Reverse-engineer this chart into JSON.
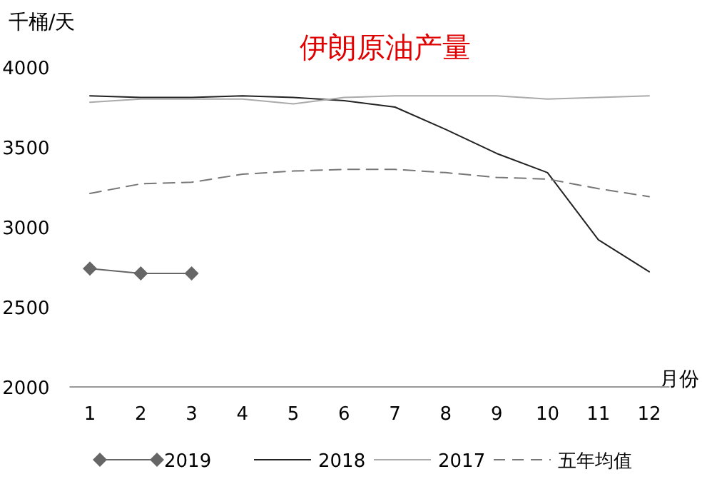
{
  "chart_data": {
    "type": "line",
    "title": "伊朗原油产量",
    "ylabel": "千桶/天",
    "xlabel": "月份",
    "x": [
      1,
      2,
      3,
      4,
      5,
      6,
      7,
      8,
      9,
      10,
      11,
      12
    ],
    "xlim": [
      0.6,
      12.4
    ],
    "xticks": [
      1,
      2,
      3,
      4,
      5,
      6,
      7,
      8,
      9,
      10,
      11,
      12
    ],
    "ylim": [
      2000,
      4000
    ],
    "yticks": [
      2000,
      2500,
      3000,
      3500,
      4000
    ],
    "grid": false,
    "legend": "bottom",
    "series": [
      {
        "name": "2019",
        "color": "#666666",
        "marker": "diamond",
        "line_style": "solid",
        "values": [
          2740,
          2710,
          2710,
          null,
          null,
          null,
          null,
          null,
          null,
          null,
          null,
          null
        ]
      },
      {
        "name": "2018",
        "color": "#222222",
        "marker": "none",
        "line_style": "solid",
        "values": [
          3820,
          3810,
          3810,
          3820,
          3810,
          3790,
          3750,
          3610,
          3460,
          3340,
          2920,
          2720
        ]
      },
      {
        "name": "2017",
        "color": "#aaaaaa",
        "marker": "none",
        "line_style": "solid",
        "values": [
          3780,
          3800,
          3800,
          3800,
          3770,
          3810,
          3820,
          3820,
          3820,
          3800,
          3810,
          3820
        ]
      },
      {
        "name": "五年均值",
        "color": "#777777",
        "marker": "none",
        "line_style": "dashed",
        "values": [
          3210,
          3270,
          3280,
          3330,
          3350,
          3360,
          3360,
          3340,
          3310,
          3300,
          3240,
          3190
        ]
      }
    ]
  }
}
